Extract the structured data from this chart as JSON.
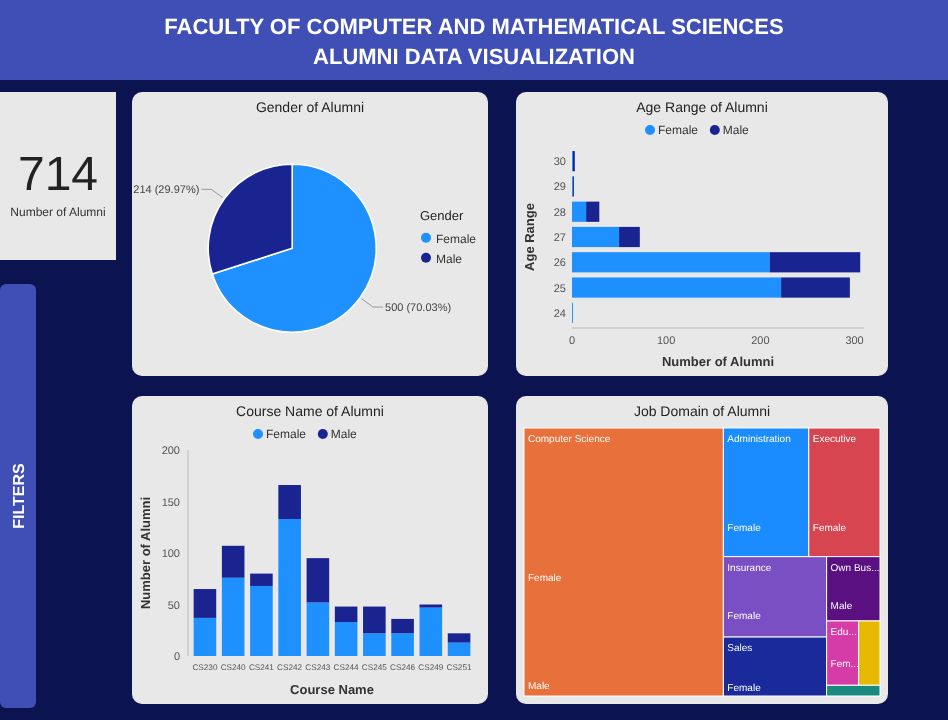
{
  "chart_data": [
    {
      "type": "other",
      "title": "FACULTY OF COMPUTER AND MATHEMATICAL SCIENCES",
      "subtitle": "ALUMNI DATA VISUALIZATION",
      "annotations": [
        "714",
        "Number of Alumni",
        "FILTERS"
      ]
    },
    {
      "type": "pie",
      "title": "Gender of Alumni",
      "categories": [
        "Female",
        "Male"
      ],
      "values": [
        500,
        214
      ],
      "colors": [
        "#1e90ff",
        "#1a2490"
      ],
      "value_labels": [
        "500 (70.03%)",
        "214 (29.97%)"
      ],
      "legend_title": "Gender",
      "legend": "right"
    },
    {
      "type": "bar",
      "orientation": "horizontal",
      "stacked": true,
      "title": "Age Range of Alumni",
      "xlabel": "Number of Alumni",
      "ylabel": "Age Range",
      "categories": [
        "30",
        "29",
        "28",
        "27",
        "26",
        "25",
        "24"
      ],
      "series": [
        {
          "name": "Female",
          "color": "#1e90ff",
          "values": [
            1,
            1,
            15,
            50,
            210,
            222,
            1
          ]
        },
        {
          "name": "Male",
          "color": "#1a2490",
          "values": [
            2,
            1,
            14,
            22,
            96,
            73,
            0
          ]
        }
      ],
      "xlim": [
        0,
        310
      ],
      "xticks": [
        0,
        100,
        200,
        300
      ],
      "legend": "top"
    },
    {
      "type": "bar",
      "stacked": true,
      "title": "Course Name of Alumni",
      "xlabel": "Course Name",
      "ylabel": "Number of Alumni",
      "categories": [
        "CS230",
        "CS240",
        "CS241",
        "CS242",
        "CS243",
        "CS244",
        "CS245",
        "CS246",
        "CS249",
        "CS251"
      ],
      "series": [
        {
          "name": "Female",
          "color": "#1e90ff",
          "values": [
            37,
            76,
            68,
            133,
            52,
            33,
            22,
            22,
            47,
            13
          ]
        },
        {
          "name": "Male",
          "color": "#1a2490",
          "values": [
            28,
            31,
            12,
            33,
            43,
            15,
            26,
            14,
            3,
            9
          ]
        }
      ],
      "ylim": [
        0,
        200
      ],
      "yticks": [
        0,
        50,
        100,
        150,
        200
      ],
      "legend": "top"
    },
    {
      "type": "other",
      "title": "Job Domain of Alumni",
      "categories": [
        "Computer Science",
        "Administration",
        "Executive",
        "Insurance",
        "Own Bus...",
        "Sales",
        "Edu...",
        null,
        null
      ],
      "colors": [
        "#e8703a",
        "#1a8cff",
        "#d64550",
        "#7b4fc4",
        "#5a1080",
        "#1a2a9a",
        "#d63ca8",
        "#e6b800",
        "#1a8a80"
      ],
      "annotations": [
        "Female",
        "Male",
        "Female",
        "Female",
        "Female",
        "Male",
        "Female",
        "Fem..."
      ]
    }
  ]
}
